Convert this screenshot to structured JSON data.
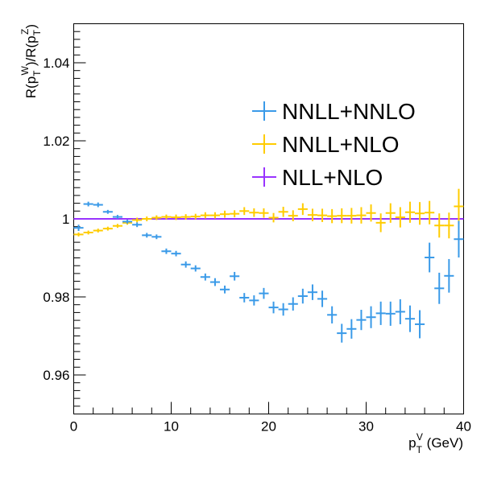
{
  "chart_data": {
    "type": "scatter",
    "xlabel": {
      "base": "p",
      "sub": "T",
      "sup": "V",
      "unit": " (GeV)"
    },
    "ylabel": {
      "parts": [
        "R(p",
        "T",
        "W",
        ")/R(p",
        "T",
        "Z",
        ")"
      ]
    },
    "xlim": [
      0,
      40
    ],
    "ylim": [
      0.95,
      1.05
    ],
    "x_ticks": [
      0,
      10,
      20,
      30,
      40
    ],
    "y_ticks": [
      0.96,
      0.98,
      1,
      1.02,
      1.04
    ],
    "y_tick_labels": [
      "0.96",
      "0.98",
      "1",
      "1.02",
      "1.04"
    ],
    "bin_halfwidth": 0.5,
    "reference_line": 1.0,
    "series": [
      {
        "name": "NNLL+NNLO",
        "color": "#3a9ae8",
        "x": [
          0.5,
          1.5,
          2.5,
          3.5,
          4.5,
          5.5,
          6.5,
          7.5,
          8.5,
          9.5,
          10.5,
          11.5,
          12.5,
          13.5,
          14.5,
          15.5,
          16.5,
          17.5,
          18.5,
          19.5,
          20.5,
          21.5,
          22.5,
          23.5,
          24.5,
          25.5,
          26.5,
          27.5,
          28.5,
          29.5,
          30.5,
          31.5,
          32.5,
          33.5,
          34.5,
          35.5,
          36.5,
          37.5,
          38.5,
          39.5
        ],
        "y": [
          0.9977,
          1.0038,
          1.0036,
          1.0018,
          1.0005,
          0.9993,
          0.9985,
          0.9958,
          0.9954,
          0.9917,
          0.9911,
          0.9883,
          0.9873,
          0.9851,
          0.9838,
          0.9819,
          0.9853,
          0.9798,
          0.9791,
          0.9809,
          0.9773,
          0.9768,
          0.9782,
          0.9802,
          0.9812,
          0.9795,
          0.9754,
          0.9707,
          0.9718,
          0.9741,
          0.9748,
          0.9758,
          0.9757,
          0.9762,
          0.9744,
          0.973,
          0.9901,
          0.9822,
          0.9854,
          0.9948
        ],
        "yerr": [
          0.0008,
          0.0006,
          0.0006,
          0.0005,
          0.0005,
          0.0005,
          0.0006,
          0.0006,
          0.0006,
          0.0007,
          0.0007,
          0.0008,
          0.0008,
          0.0009,
          0.001,
          0.001,
          0.0011,
          0.0012,
          0.0013,
          0.0014,
          0.0015,
          0.0016,
          0.0017,
          0.0019,
          0.002,
          0.0021,
          0.0022,
          0.0024,
          0.0025,
          0.0026,
          0.0028,
          0.003,
          0.0031,
          0.0032,
          0.0034,
          0.0036,
          0.0038,
          0.004,
          0.0043,
          0.0047
        ]
      },
      {
        "name": "NNLL+NLO",
        "color": "#ffcc00",
        "x": [
          0.5,
          1.5,
          2.5,
          3.5,
          4.5,
          5.5,
          6.5,
          7.5,
          8.5,
          9.5,
          10.5,
          11.5,
          12.5,
          13.5,
          14.5,
          15.5,
          16.5,
          17.5,
          18.5,
          19.5,
          20.5,
          21.5,
          22.5,
          23.5,
          24.5,
          25.5,
          26.5,
          27.5,
          28.5,
          29.5,
          30.5,
          31.5,
          32.5,
          33.5,
          34.5,
          35.5,
          36.5,
          37.5,
          38.5,
          39.5
        ],
        "y": [
          0.996,
          0.9965,
          0.997,
          0.9975,
          0.9982,
          0.999,
          0.9997,
          1.0,
          1.0003,
          1.0005,
          1.0004,
          1.0005,
          1.0006,
          1.0009,
          1.0009,
          1.0012,
          1.0013,
          1.002,
          1.0016,
          1.0015,
          1.0003,
          1.0018,
          1.0008,
          1.0025,
          1.001,
          1.0009,
          1.0007,
          1.0008,
          1.0008,
          1.0009,
          1.0015,
          0.999,
          1.0015,
          1.0004,
          1.0017,
          1.0014,
          1.0016,
          0.9983,
          0.9983,
          1.0032
        ],
        "yerr": [
          0.0005,
          0.0005,
          0.0005,
          0.0005,
          0.0005,
          0.0005,
          0.0006,
          0.0006,
          0.0006,
          0.0006,
          0.0007,
          0.0007,
          0.0007,
          0.0008,
          0.0008,
          0.0009,
          0.0009,
          0.001,
          0.0011,
          0.0012,
          0.0012,
          0.0013,
          0.0014,
          0.0015,
          0.0016,
          0.0017,
          0.0018,
          0.0019,
          0.002,
          0.0021,
          0.0022,
          0.0024,
          0.0025,
          0.0026,
          0.0027,
          0.0029,
          0.003,
          0.0031,
          0.0033,
          0.0045
        ]
      },
      {
        "name": "NLL+NLO",
        "color": "#9933ff",
        "x": [
          0.5,
          1.5,
          2.5,
          3.5,
          4.5,
          5.5,
          6.5,
          7.5,
          8.5,
          9.5,
          10.5,
          11.5,
          12.5,
          13.5,
          14.5,
          15.5,
          16.5,
          17.5,
          18.5,
          19.5,
          20.5,
          21.5,
          22.5,
          23.5,
          24.5,
          25.5,
          26.5,
          27.5,
          28.5,
          29.5,
          30.5,
          31.5,
          32.5,
          33.5,
          34.5,
          35.5,
          36.5,
          37.5,
          38.5,
          39.5
        ],
        "y": [
          1,
          1,
          1,
          1,
          1,
          1,
          1,
          1,
          1,
          1,
          1,
          1,
          1,
          1,
          1,
          1,
          1,
          1,
          1,
          1,
          1,
          1,
          1,
          1,
          1,
          1,
          1,
          1,
          1,
          1,
          1,
          1,
          1,
          1,
          1,
          1,
          1,
          1,
          1,
          1
        ],
        "yerr": [
          0,
          0,
          0,
          0,
          0,
          0,
          0,
          0,
          0,
          0,
          0,
          0,
          0,
          0,
          0,
          0,
          0,
          0,
          0,
          0,
          0,
          0,
          0,
          0,
          0,
          0,
          0,
          0,
          0,
          0,
          0,
          0,
          0,
          0,
          0,
          0,
          0,
          0,
          0,
          0
        ]
      }
    ]
  }
}
